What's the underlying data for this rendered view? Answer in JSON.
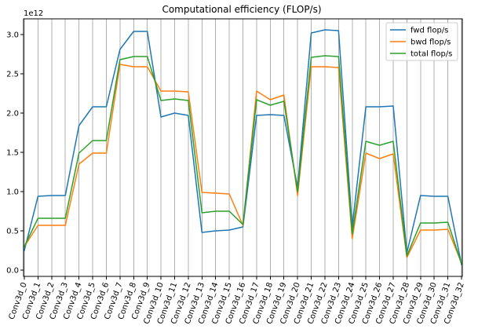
{
  "chart_data": {
    "type": "line",
    "title": "Computational efficiency (FLOP/s)",
    "xlabel": "",
    "ylabel": "",
    "y_offset_label": "1e12",
    "ylim": [
      -0.08,
      3.2
    ],
    "yticks": [
      0.0,
      0.5,
      1.0,
      1.5,
      2.0,
      2.5,
      3.0
    ],
    "ytick_labels": [
      "0.0",
      "0.5",
      "1.0",
      "1.5",
      "2.0",
      "2.5",
      "3.0"
    ],
    "x_grid": true,
    "y_grid": false,
    "legend_position": "top-right",
    "categories": [
      "Conv3d_0",
      "Conv3d_1",
      "Conv3d_2",
      "Conv3d_3",
      "Conv3d_4",
      "Conv3d_5",
      "Conv3d_6",
      "Conv3d_7",
      "Conv3d_8",
      "Conv3d_9",
      "Conv3d_10",
      "Conv3d_11",
      "Conv3d_12",
      "Conv3d_13",
      "Conv3d_14",
      "Conv3d_15",
      "Conv3d_16",
      "Conv3d_17",
      "Conv3d_18",
      "Conv3d_19",
      "Conv3d_20",
      "Conv3d_21",
      "Conv3d_22",
      "Conv3d_23",
      "Conv3d_24",
      "Conv3d_25",
      "Conv3d_26",
      "Conv3d_27",
      "Conv3d_28",
      "Conv3d_29",
      "Conv3d_30",
      "Conv3d_31",
      "Conv3d_32"
    ],
    "series": [
      {
        "name": "fwd flop/s",
        "color": "#1f77b4",
        "values": [
          0.25,
          0.94,
          0.95,
          0.95,
          1.84,
          2.08,
          2.08,
          2.81,
          3.04,
          3.04,
          1.95,
          2.0,
          1.97,
          0.48,
          0.5,
          0.51,
          0.55,
          1.97,
          1.98,
          1.97,
          1.05,
          3.02,
          3.06,
          3.05,
          0.55,
          2.08,
          2.08,
          2.09,
          0.22,
          0.95,
          0.94,
          0.94,
          0.07
        ]
      },
      {
        "name": "bwd flop/s",
        "color": "#ff7f0e",
        "values": [
          0.3,
          0.57,
          0.57,
          0.57,
          1.35,
          1.49,
          1.49,
          2.62,
          2.59,
          2.59,
          2.28,
          2.28,
          2.27,
          0.99,
          0.98,
          0.97,
          0.57,
          2.28,
          2.17,
          2.23,
          0.95,
          2.59,
          2.59,
          2.58,
          0.4,
          1.49,
          1.42,
          1.48,
          0.16,
          0.51,
          0.51,
          0.52,
          0.09
        ]
      },
      {
        "name": "total flop/s",
        "color": "#2ca02c",
        "values": [
          0.3,
          0.66,
          0.66,
          0.66,
          1.49,
          1.65,
          1.65,
          2.68,
          2.72,
          2.72,
          2.16,
          2.18,
          2.16,
          0.73,
          0.75,
          0.75,
          0.58,
          2.17,
          2.1,
          2.15,
          1.0,
          2.71,
          2.73,
          2.72,
          0.46,
          1.64,
          1.59,
          1.64,
          0.18,
          0.6,
          0.6,
          0.61,
          0.08
        ]
      }
    ]
  }
}
